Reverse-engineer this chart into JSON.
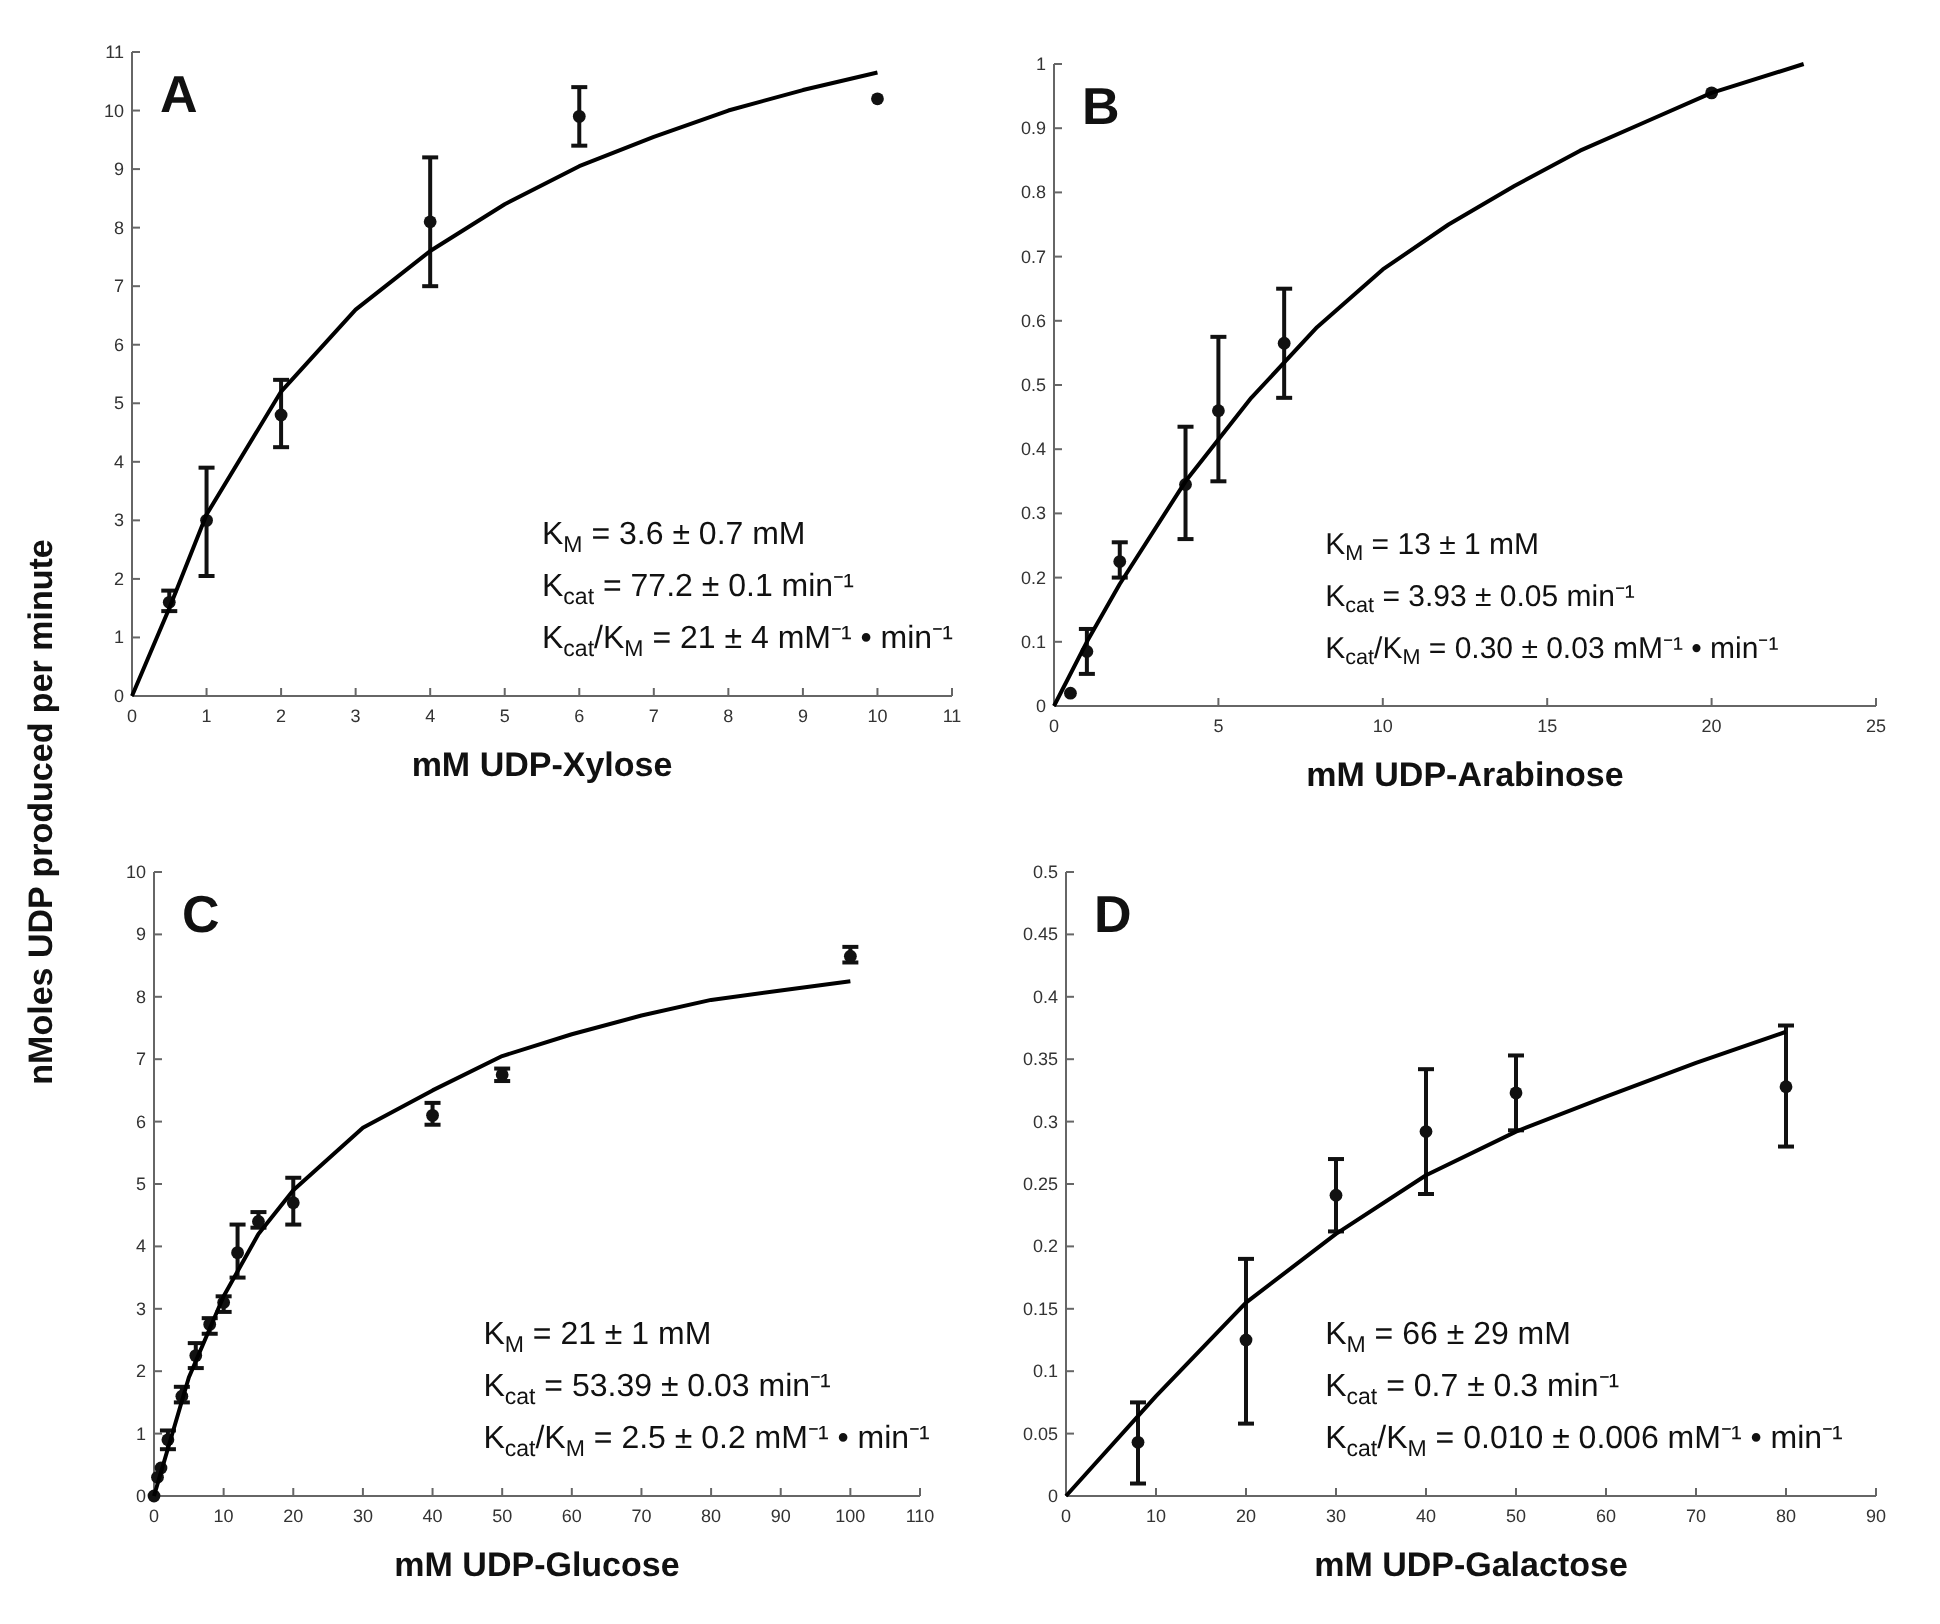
{
  "chart_data": [
    {
      "type": "scatter",
      "title": "A",
      "xlabel": "mM UDP-Xylose",
      "ylabel": "nMoles UDP produced per minute",
      "xlim": [
        0,
        11
      ],
      "xticks": [
        0,
        1,
        2,
        3,
        4,
        5,
        6,
        7,
        8,
        9,
        10,
        11
      ],
      "ylim": [
        0,
        11
      ],
      "yticks": [
        0,
        1,
        2,
        3,
        4,
        5,
        6,
        7,
        8,
        9,
        10,
        11
      ],
      "grid": false,
      "annotations": [
        "K$_{M}$ = 3.6 ± 0.7 mM",
        "K$_{cat}$ = 77.2 ± 0.1 min⁻¹",
        "K$_{cat}$/K$_{M}$ = 21 ± 4 mM⁻¹ • min⁻¹"
      ],
      "series": [
        {
          "type": "scatter",
          "color": "#111111",
          "marker": "circle",
          "x": [
            0.5,
            1,
            2,
            4,
            6,
            10
          ],
          "values": [
            1.6,
            3.0,
            4.8,
            8.1,
            9.9,
            10.2
          ],
          "errors": [
            [
              1.45,
              1.8
            ],
            [
              2.05,
              3.9
            ],
            [
              4.25,
              5.4
            ],
            [
              7.0,
              9.2
            ],
            [
              9.4,
              10.4
            ],
            null
          ]
        },
        {
          "type": "line",
          "color": "#000000",
          "marker": "none",
          "line_style": "solid",
          "x": [
            0,
            0.5,
            1,
            2,
            3,
            4,
            5,
            6,
            7,
            8,
            9,
            10
          ],
          "values": [
            0,
            1.5,
            3.1,
            5.2,
            6.6,
            7.6,
            8.4,
            9.05,
            9.55,
            10.0,
            10.35,
            10.65
          ]
        }
      ]
    },
    {
      "type": "scatter",
      "title": "B",
      "xlabel": "mM UDP-Arabinose",
      "xlim": [
        0,
        25
      ],
      "xticks": [
        0,
        5,
        10,
        15,
        20,
        25
      ],
      "ylim": [
        0,
        1
      ],
      "yticks": [
        0,
        0.1,
        0.2,
        0.3,
        0.4,
        0.5,
        0.6,
        0.7,
        0.8,
        0.9,
        1
      ],
      "grid": false,
      "annotations": [
        "K$_{M}$ = 13 ± 1 mM",
        "K$_{cat}$ = 3.93 ± 0.05 min⁻¹",
        "K$_{cat}$/K$_{M}$ = 0.30 ± 0.03 mM⁻¹ • min⁻¹"
      ],
      "series": [
        {
          "type": "scatter",
          "color": "#111111",
          "marker": "circle",
          "x": [
            0.5,
            1,
            2,
            4,
            5,
            7,
            20
          ],
          "values": [
            0.02,
            0.085,
            0.225,
            0.345,
            0.46,
            0.565,
            0.955
          ],
          "errors": [
            null,
            [
              0.05,
              0.12
            ],
            [
              0.2,
              0.255
            ],
            [
              0.26,
              0.435
            ],
            [
              0.35,
              0.575
            ],
            [
              0.48,
              0.65
            ],
            null
          ]
        },
        {
          "type": "line",
          "color": "#000000",
          "marker": "none",
          "line_style": "solid",
          "x": [
            0,
            1,
            2,
            4,
            6,
            8,
            10,
            12,
            14,
            16,
            18,
            20,
            22.8
          ],
          "values": [
            0,
            0.1,
            0.19,
            0.35,
            0.48,
            0.59,
            0.68,
            0.75,
            0.81,
            0.865,
            0.91,
            0.955,
            1.0
          ]
        }
      ]
    },
    {
      "type": "scatter",
      "title": "C",
      "xlabel": "mM UDP-Glucose",
      "xlim": [
        0,
        110
      ],
      "xticks": [
        0,
        10,
        20,
        30,
        40,
        50,
        60,
        70,
        80,
        90,
        100,
        110
      ],
      "ylim": [
        0,
        10
      ],
      "yticks": [
        0,
        1,
        2,
        3,
        4,
        5,
        6,
        7,
        8,
        9,
        10
      ],
      "grid": false,
      "annotations": [
        "K$_{M}$ = 21 ± 1 mM",
        "K$_{cat}$ = 53.39 ± 0.03 min⁻¹",
        "K$_{cat}$/K$_{M}$ = 2.5 ± 0.2 mM⁻¹ • min⁻¹"
      ],
      "series": [
        {
          "type": "scatter",
          "color": "#111111",
          "marker": "circle",
          "x": [
            0,
            0.5,
            1,
            2,
            4,
            6,
            8,
            10,
            12,
            15,
            20,
            40,
            50,
            100
          ],
          "values": [
            0,
            0.3,
            0.45,
            0.9,
            1.6,
            2.25,
            2.75,
            3.1,
            3.9,
            4.4,
            4.7,
            6.1,
            6.75,
            8.65
          ],
          "errors": [
            null,
            null,
            null,
            [
              0.75,
              1.05
            ],
            [
              1.5,
              1.75
            ],
            [
              2.05,
              2.45
            ],
            [
              2.6,
              2.85
            ],
            [
              2.95,
              3.2
            ],
            [
              3.5,
              4.35
            ],
            [
              4.3,
              4.55
            ],
            [
              4.35,
              5.1
            ],
            [
              5.95,
              6.3
            ],
            [
              6.65,
              6.85
            ],
            [
              8.55,
              8.8
            ]
          ]
        },
        {
          "type": "line",
          "color": "#000000",
          "marker": "none",
          "line_style": "solid",
          "x": [
            0,
            5,
            10,
            15,
            20,
            30,
            40,
            50,
            60,
            70,
            80,
            90,
            100
          ],
          "values": [
            0,
            1.9,
            3.2,
            4.2,
            4.9,
            5.9,
            6.5,
            7.05,
            7.4,
            7.7,
            7.95,
            8.1,
            8.25
          ]
        }
      ]
    },
    {
      "type": "scatter",
      "title": "D",
      "xlabel": "mM UDP-Galactose",
      "xlim": [
        0,
        90
      ],
      "xticks": [
        0,
        10,
        20,
        30,
        40,
        50,
        60,
        70,
        80,
        90
      ],
      "ylim": [
        0,
        0.5
      ],
      "yticks": [
        0,
        0.05,
        0.1,
        0.15,
        0.2,
        0.25,
        0.3,
        0.35,
        0.4,
        0.45,
        0.5
      ],
      "grid": false,
      "annotations": [
        "K$_{M}$ = 66 ± 29 mM",
        "K$_{cat}$ = 0.7 ± 0.3 min⁻¹",
        "K$_{cat}$/K$_{M}$ = 0.010 ± 0.006 mM⁻¹ • min⁻¹"
      ],
      "series": [
        {
          "type": "scatter",
          "color": "#111111",
          "marker": "circle",
          "x": [
            8,
            20,
            30,
            40,
            50,
            80
          ],
          "values": [
            0.043,
            0.125,
            0.241,
            0.292,
            0.323,
            0.328
          ],
          "errors": [
            [
              0.01,
              0.075
            ],
            [
              0.058,
              0.19
            ],
            [
              0.212,
              0.27
            ],
            [
              0.242,
              0.342
            ],
            [
              0.293,
              0.353
            ],
            [
              0.28,
              0.377
            ]
          ]
        },
        {
          "type": "line",
          "color": "#000000",
          "marker": "none",
          "line_style": "solid",
          "x": [
            0,
            10,
            20,
            30,
            40,
            50,
            60,
            70,
            80
          ],
          "values": [
            0,
            0.08,
            0.155,
            0.21,
            0.257,
            0.292,
            0.32,
            0.347,
            0.372
          ]
        }
      ]
    }
  ]
}
